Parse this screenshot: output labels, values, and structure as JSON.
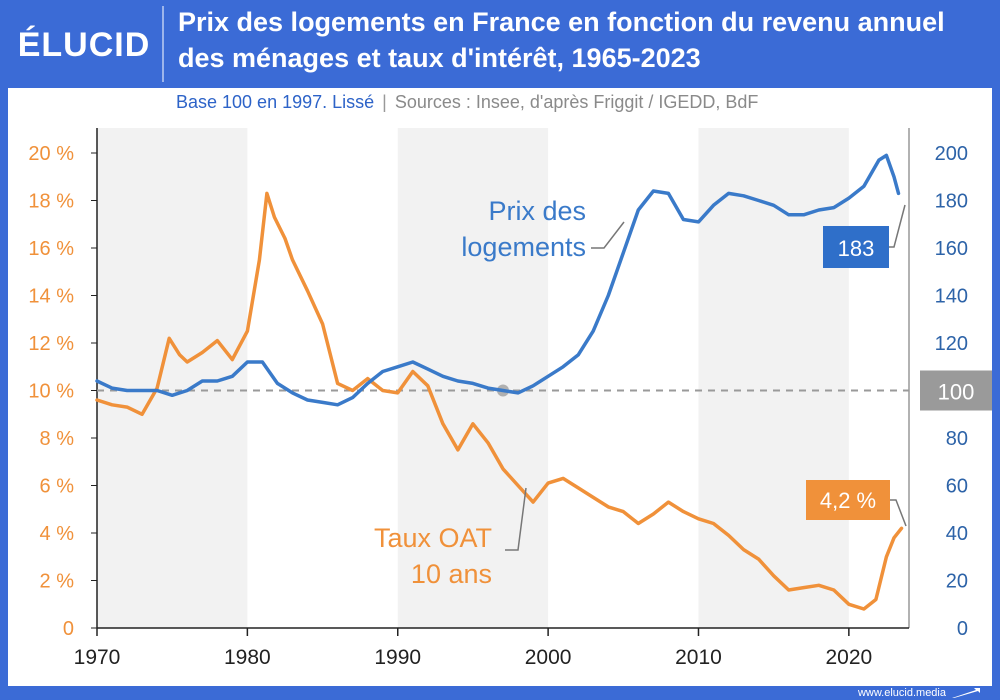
{
  "header": {
    "logo": "ÉLUCID",
    "title": "Prix des logements en France en fonction du revenu annuel des ménages et taux d'intérêt, 1965-2023",
    "subtitle_main": "Base 100 en 1997. Lissé",
    "subtitle_sep": "|",
    "subtitle_sources": "Sources : Insee, d'après Friggit / IGEDD, BdF"
  },
  "footer": {
    "url": "www.elucid.media"
  },
  "colors": {
    "frame": "#3b6bd6",
    "price": "#3a7ac9",
    "rate": "#f0913a",
    "badge_price": "#2f6fc9",
    "badge_rate": "#f0913a",
    "badge_ref": "#9a9a9a",
    "shade": "#f2f2f2"
  },
  "chart_data": {
    "type": "line",
    "x_ticks": [
      "1970",
      "1980",
      "1990",
      "2000",
      "2010",
      "2020"
    ],
    "y_left_ticks": [
      "0",
      "2 %",
      "4 %",
      "6 %",
      "8 %",
      "10 %",
      "12 %",
      "14 %",
      "16 %",
      "18 %",
      "20 %"
    ],
    "y_right_ticks": [
      "0",
      "20",
      "40",
      "60",
      "80",
      "100",
      "120",
      "140",
      "160",
      "180",
      "200"
    ],
    "xlim": [
      1970,
      2024
    ],
    "ylim_left": [
      0,
      20
    ],
    "ylim_right": [
      0,
      200
    ],
    "shaded_decades": [
      [
        1970,
        1980
      ],
      [
        1990,
        2000
      ],
      [
        2010,
        2020
      ]
    ],
    "reference_line": {
      "axis": "right",
      "value": 100,
      "label": "100"
    },
    "series": [
      {
        "name": "Prix des logements",
        "label_lines": [
          "Prix des",
          "logements"
        ],
        "axis": "right",
        "end_label": "183",
        "points": [
          [
            1970,
            104
          ],
          [
            1971,
            101
          ],
          [
            1972,
            100
          ],
          [
            1973,
            100
          ],
          [
            1974,
            100
          ],
          [
            1975,
            98
          ],
          [
            1976,
            100
          ],
          [
            1977,
            104
          ],
          [
            1978,
            104
          ],
          [
            1979,
            106
          ],
          [
            1980,
            112
          ],
          [
            1981,
            112
          ],
          [
            1982,
            103
          ],
          [
            1983,
            99
          ],
          [
            1984,
            96
          ],
          [
            1985,
            95
          ],
          [
            1986,
            94
          ],
          [
            1987,
            97
          ],
          [
            1988,
            103
          ],
          [
            1989,
            108
          ],
          [
            1990,
            110
          ],
          [
            1991,
            112
          ],
          [
            1992,
            109
          ],
          [
            1993,
            106
          ],
          [
            1994,
            104
          ],
          [
            1995,
            103
          ],
          [
            1996,
            101
          ],
          [
            1997,
            100
          ],
          [
            1998,
            99
          ],
          [
            1999,
            102
          ],
          [
            2000,
            106
          ],
          [
            2001,
            110
          ],
          [
            2002,
            115
          ],
          [
            2003,
            125
          ],
          [
            2004,
            140
          ],
          [
            2005,
            158
          ],
          [
            2006,
            176
          ],
          [
            2007,
            184
          ],
          [
            2008,
            183
          ],
          [
            2009,
            172
          ],
          [
            2010,
            171
          ],
          [
            2011,
            178
          ],
          [
            2012,
            183
          ],
          [
            2013,
            182
          ],
          [
            2014,
            180
          ],
          [
            2015,
            178
          ],
          [
            2016,
            174
          ],
          [
            2017,
            174
          ],
          [
            2018,
            176
          ],
          [
            2019,
            177
          ],
          [
            2020,
            181
          ],
          [
            2021,
            186
          ],
          [
            2022,
            197
          ],
          [
            2022.5,
            199
          ],
          [
            2023,
            190
          ],
          [
            2023.3,
            183
          ]
        ]
      },
      {
        "name": "Taux OAT 10 ans",
        "label_lines": [
          "Taux OAT",
          "10 ans"
        ],
        "axis": "left",
        "end_label": "4,2 %",
        "points": [
          [
            1970,
            9.6
          ],
          [
            1971,
            9.4
          ],
          [
            1972,
            9.3
          ],
          [
            1973,
            9.0
          ],
          [
            1974,
            10.1
          ],
          [
            1974.8,
            12.2
          ],
          [
            1975.5,
            11.5
          ],
          [
            1976,
            11.2
          ],
          [
            1977,
            11.6
          ],
          [
            1978,
            12.1
          ],
          [
            1979,
            11.3
          ],
          [
            1980,
            12.5
          ],
          [
            1980.8,
            15.5
          ],
          [
            1981.3,
            18.3
          ],
          [
            1981.8,
            17.3
          ],
          [
            1982.5,
            16.4
          ],
          [
            1983,
            15.5
          ],
          [
            1984,
            14.2
          ],
          [
            1985,
            12.8
          ],
          [
            1986,
            10.3
          ],
          [
            1987,
            10.0
          ],
          [
            1988,
            10.5
          ],
          [
            1989,
            10.0
          ],
          [
            1990,
            9.9
          ],
          [
            1991,
            10.8
          ],
          [
            1992,
            10.2
          ],
          [
            1993,
            8.6
          ],
          [
            1994,
            7.5
          ],
          [
            1995,
            8.6
          ],
          [
            1996,
            7.8
          ],
          [
            1997,
            6.7
          ],
          [
            1998,
            6.0
          ],
          [
            1999,
            5.3
          ],
          [
            2000,
            6.1
          ],
          [
            2001,
            6.3
          ],
          [
            2002,
            5.9
          ],
          [
            2003,
            5.5
          ],
          [
            2004,
            5.1
          ],
          [
            2005,
            4.9
          ],
          [
            2006,
            4.4
          ],
          [
            2007,
            4.8
          ],
          [
            2008,
            5.3
          ],
          [
            2009,
            4.9
          ],
          [
            2010,
            4.6
          ],
          [
            2011,
            4.4
          ],
          [
            2012,
            3.9
          ],
          [
            2013,
            3.3
          ],
          [
            2014,
            2.9
          ],
          [
            2015,
            2.2
          ],
          [
            2016,
            1.6
          ],
          [
            2017,
            1.7
          ],
          [
            2018,
            1.8
          ],
          [
            2019,
            1.6
          ],
          [
            2020,
            1.0
          ],
          [
            2021,
            0.8
          ],
          [
            2021.8,
            1.2
          ],
          [
            2022.5,
            3.0
          ],
          [
            2023,
            3.8
          ],
          [
            2023.5,
            4.2
          ]
        ]
      }
    ]
  }
}
